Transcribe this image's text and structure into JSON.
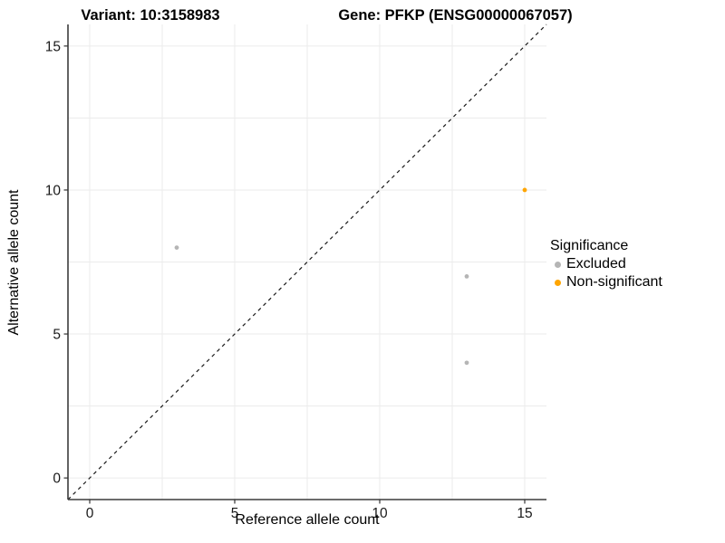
{
  "chart_data": {
    "type": "scatter",
    "title_left": "Variant: 10:3158983",
    "title_right": "Gene: PFKP (ENSG00000067057)",
    "xlabel": "Reference allele count",
    "ylabel": "Alternative allele count",
    "xlim": [
      -0.75,
      15.75
    ],
    "ylim": [
      -0.75,
      15.75
    ],
    "x_ticks": [
      0,
      5,
      10,
      15
    ],
    "y_ticks": [
      0,
      5,
      10,
      15
    ],
    "x_minor": [
      2.5,
      7.5,
      12.5
    ],
    "y_minor": [
      2.5,
      7.5,
      12.5
    ],
    "grid": true,
    "identity_line": {
      "style": "dashed",
      "from": [
        -0.75,
        -0.75
      ],
      "to": [
        15.75,
        15.75
      ]
    },
    "series": [
      {
        "name": "Excluded",
        "color": "#b5b5b5",
        "points": [
          [
            3,
            8
          ],
          [
            13,
            7
          ],
          [
            13,
            4
          ]
        ]
      },
      {
        "name": "Non-significant",
        "color": "#FFA500",
        "points": [
          [
            15,
            10
          ]
        ]
      }
    ],
    "legend": {
      "title": "Significance",
      "position": "right",
      "entries": [
        {
          "label": "Excluded",
          "color": "#b5b5b5"
        },
        {
          "label": "Non-significant",
          "color": "#FFA500"
        }
      ]
    },
    "colors": {
      "grid": "#ebebeb",
      "axis_line": "#3c3c3c",
      "tick_mark": "#333333",
      "dashed_line": "#1a1a1a",
      "background": "#ffffff"
    },
    "point_radius": 2.4
  }
}
